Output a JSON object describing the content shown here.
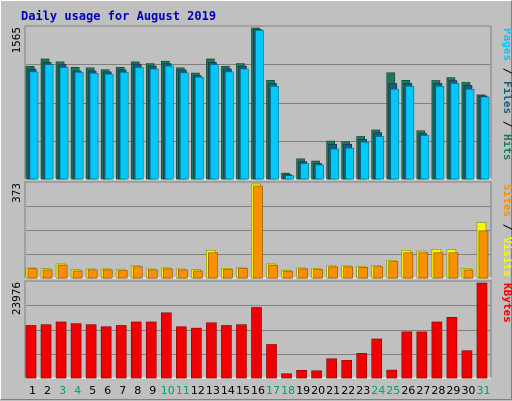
{
  "chart_data": {
    "type": "bar",
    "title": "Daily usage for August 2019",
    "categories": [
      "1",
      "2",
      "3",
      "4",
      "5",
      "6",
      "7",
      "8",
      "9",
      "10",
      "11",
      "12",
      "13",
      "14",
      "15",
      "16",
      "17",
      "18",
      "19",
      "20",
      "21",
      "22",
      "23",
      "24",
      "25",
      "26",
      "27",
      "28",
      "29",
      "30",
      "31"
    ],
    "weekend_days": [
      "3",
      "4",
      "10",
      "11",
      "17",
      "18",
      "24",
      "25",
      "31"
    ],
    "panels": [
      {
        "id": "hits-files-pages",
        "ymax_label": "1565",
        "ylim": [
          0,
          1565
        ],
        "right_labels": [
          "Pages",
          "Files",
          "Hits"
        ],
        "series": [
          {
            "name": "Hits",
            "color": "#1a7a5a",
            "values": [
              1168,
              1244,
              1214,
              1158,
              1152,
              1133,
              1158,
              1214,
              1196,
              1221,
              1152,
              1098,
              1244,
              1168,
              1196,
              1565,
              1023,
              61,
              209,
              186,
              393,
              386,
              441,
              508,
              1101,
              1023,
              500,
              1021,
              1051,
              1001,
              872
            ]
          },
          {
            "name": "Files",
            "color": "#1a5a7a",
            "values": [
              1140,
              1210,
              1185,
              1120,
              1120,
              1110,
              1130,
              1190,
              1170,
              1195,
              1130,
              1070,
              1210,
              1140,
              1170,
              1550,
              990,
              45,
              180,
              160,
              360,
              360,
              410,
              480,
              990,
              990,
              470,
              990,
              1020,
              970,
              860
            ]
          },
          {
            "name": "Pages",
            "color": "#00c8f8",
            "values": [
              1110,
              1185,
              1155,
              1105,
              1095,
              1085,
              1105,
              1155,
              1140,
              1170,
              1100,
              1055,
              1185,
              1110,
              1140,
              1540,
              960,
              35,
              160,
              145,
              310,
              320,
              380,
              440,
              930,
              960,
              450,
              960,
              990,
              930,
              850
            ]
          }
        ]
      },
      {
        "id": "visits-sites",
        "ymax_label": "373",
        "ylim": [
          0,
          373
        ],
        "right_labels": [
          "Sites",
          "Visits"
        ],
        "series": [
          {
            "name": "Visits",
            "color": "#f8f800",
            "values": [
              40,
              37,
              56,
              34,
              36,
              36,
              35,
              50,
              36,
              40,
              36,
              33,
              110,
              38,
              42,
              373,
              56,
              31,
              40,
              38,
              48,
              48,
              46,
              50,
              70,
              110,
              107,
              114,
              113,
              38,
              220
            ]
          },
          {
            "name": "Sites",
            "color": "#f89000",
            "values": [
              37,
              32,
              51,
              28,
              32,
              32,
              30,
              45,
              32,
              36,
              32,
              28,
              100,
              34,
              38,
              365,
              51,
              27,
              36,
              34,
              44,
              44,
              42,
              45,
              65,
              100,
              100,
              100,
              100,
              32,
              187
            ]
          }
        ]
      },
      {
        "id": "kbytes",
        "ymax_label": "23976",
        "ylim": [
          0,
          23976
        ],
        "right_labels": [
          "KBytes"
        ],
        "series": [
          {
            "name": "KBytes",
            "color": "#f00000",
            "values": [
              13262,
              13456,
              14138,
              13715,
              13456,
              12939,
              13262,
              14138,
              14138,
              16448,
              12939,
              12584,
              13935,
              13262,
              13456,
              17807,
              8451,
              1081,
              1948,
              1815,
              4848,
              4454,
              6226,
              9847,
              1997,
              11638,
              11638,
              14138,
              15315,
              6893,
              23976
            ]
          }
        ]
      }
    ],
    "colors": {
      "title": "#0000c0",
      "weekday_label": "#000000",
      "weekend_label": "#00a060",
      "plot_bg": "#c0c0c0",
      "grid": "#808080"
    }
  }
}
